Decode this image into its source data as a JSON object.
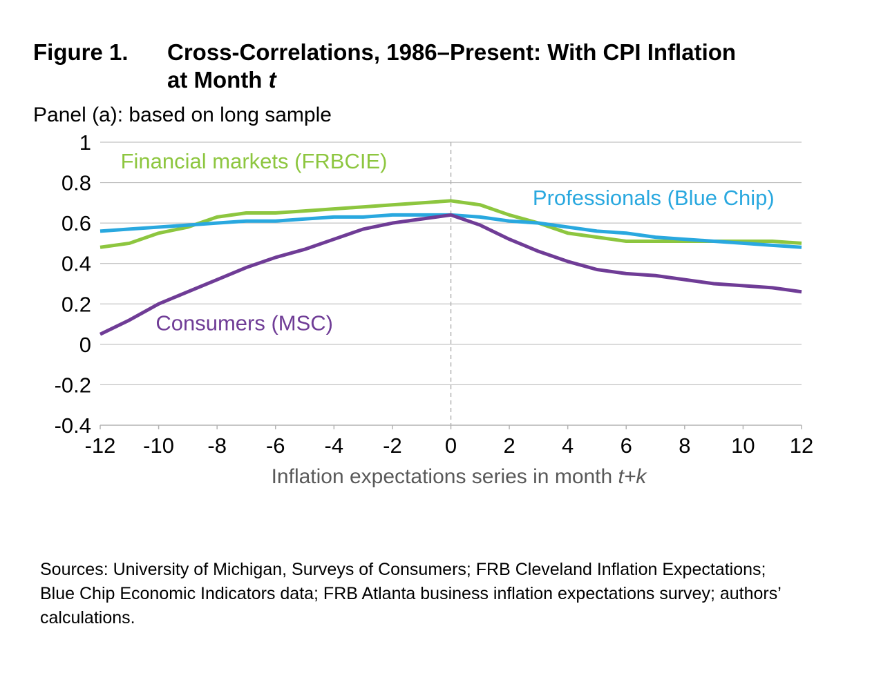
{
  "figure": {
    "label": "Figure 1.",
    "title_main": "Cross-Correlations, 1986–Present: With CPI Inflation at Month ",
    "title_italic": "t"
  },
  "panel_label": "Panel (a): based on long sample",
  "sources": "Sources: University of Michigan, Surveys of Consumers; FRB Cleveland Inflation Expectations; Blue Chip Economic Indicators data; FRB Atlanta business inflation expectations survey; authors’ calculations.",
  "chart_data": {
    "type": "line",
    "title": "",
    "xlabel": "Inflation expectations series in month ",
    "xlabel_italic": "t+k",
    "ylabel": "",
    "xlim": [
      -12,
      12
    ],
    "ylim": [
      -0.4,
      1
    ],
    "x_ticks": [
      -12,
      -10,
      -8,
      -6,
      -4,
      -2,
      0,
      2,
      4,
      6,
      8,
      10,
      12
    ],
    "x_tick_labels": [
      "-12",
      "-10",
      "-8",
      "-6",
      "-4",
      "-2",
      "0",
      "2",
      "4",
      "6",
      "8",
      "10",
      "12"
    ],
    "y_ticks": [
      -0.4,
      -0.2,
      0,
      0.2,
      0.4,
      0.6,
      0.8,
      1
    ],
    "y_tick_labels": [
      "-0.4",
      "-0.2",
      "0",
      "0.2",
      "0.4",
      "0.6",
      "0.8",
      "1"
    ],
    "grid": "horizontal",
    "reference_line_x": 0,
    "legend": "inline labels",
    "x": [
      -12,
      -11,
      -10,
      -9,
      -8,
      -7,
      -6,
      -5,
      -4,
      -3,
      -2,
      -1,
      0,
      1,
      2,
      3,
      4,
      5,
      6,
      7,
      8,
      9,
      10,
      11,
      12
    ],
    "series": [
      {
        "name": "Financial markets (FRBCIE)",
        "color": "#8dc63f",
        "label_anchor": [
          -11.3,
          0.87
        ],
        "values": [
          0.48,
          0.5,
          0.55,
          0.58,
          0.63,
          0.65,
          0.65,
          0.66,
          0.67,
          0.68,
          0.69,
          0.7,
          0.71,
          0.69,
          0.64,
          0.6,
          0.55,
          0.53,
          0.51,
          0.51,
          0.51,
          0.51,
          0.51,
          0.51,
          0.5
        ]
      },
      {
        "name": "Professionals (Blue Chip)",
        "color": "#29a8df",
        "label_anchor": [
          2.8,
          0.69
        ],
        "values": [
          0.56,
          0.57,
          0.58,
          0.59,
          0.6,
          0.61,
          0.61,
          0.62,
          0.63,
          0.63,
          0.64,
          0.64,
          0.64,
          0.63,
          0.61,
          0.6,
          0.58,
          0.56,
          0.55,
          0.53,
          0.52,
          0.51,
          0.5,
          0.49,
          0.48
        ]
      },
      {
        "name": "Consumers (MSC)",
        "color": "#6f3c96",
        "label_anchor": [
          -10.1,
          0.07
        ],
        "values": [
          0.05,
          0.12,
          0.2,
          0.26,
          0.32,
          0.38,
          0.43,
          0.47,
          0.52,
          0.57,
          0.6,
          0.62,
          0.64,
          0.59,
          0.52,
          0.46,
          0.41,
          0.37,
          0.35,
          0.34,
          0.32,
          0.3,
          0.29,
          0.28,
          0.26
        ]
      }
    ]
  }
}
